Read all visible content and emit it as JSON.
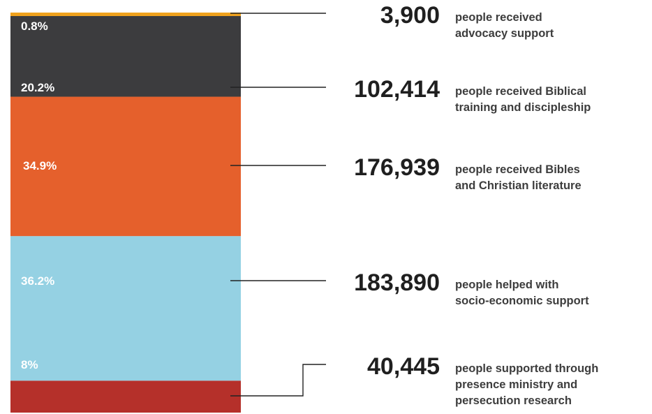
{
  "chart_data": {
    "type": "bar",
    "title": "",
    "xlabel": "",
    "ylabel": "",
    "unit": "%",
    "ylim": [
      0,
      100
    ],
    "stacked": true,
    "segments": [
      {
        "pct_label": "8%",
        "value": 8,
        "count": "40,445",
        "desc": [
          "people supported through",
          "presence ministry and",
          "persecution research"
        ],
        "color": "#b5302a"
      },
      {
        "pct_label": "36.2%",
        "value": 36.2,
        "count": "183,890",
        "desc": [
          "people helped with",
          "socio-economic support"
        ],
        "color": "#95d1e3"
      },
      {
        "pct_label": "34.9%",
        "value": 34.9,
        "count": "176,939",
        "desc": [
          "people received Bibles",
          "and Christian literature"
        ],
        "color": "#e5602c"
      },
      {
        "pct_label": "20.2%",
        "value": 20.2,
        "count": "102,414",
        "desc": [
          "people received Biblical",
          "training and discipleship"
        ],
        "color": "#3c3c3e"
      },
      {
        "pct_label": "0.8%",
        "value": 0.8,
        "count": "3,900",
        "desc": [
          "people received",
          "advocacy support"
        ],
        "color": "#f0a21d"
      }
    ]
  }
}
